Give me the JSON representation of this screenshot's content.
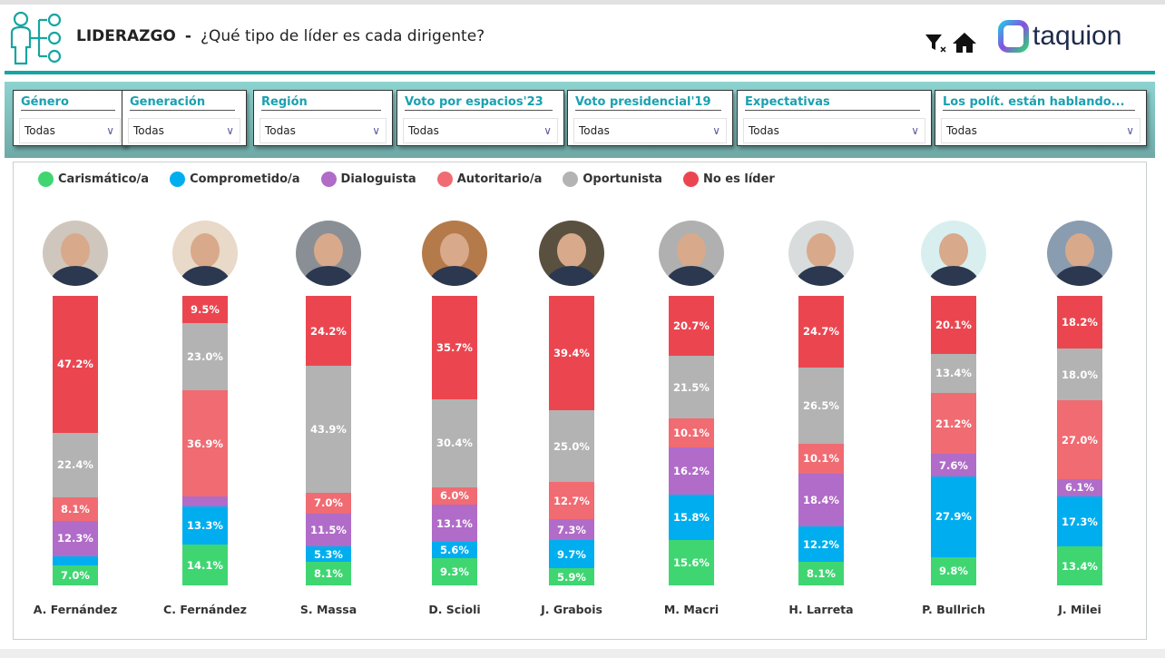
{
  "header": {
    "title": "LIDERAZGO",
    "separator": "-",
    "subtitle": "¿Qué tipo de líder es cada dirigente?",
    "brand": "taquion",
    "icons": [
      "clear-filter-icon",
      "home-icon"
    ]
  },
  "filters": [
    {
      "label": "Género",
      "value": "Todas"
    },
    {
      "label": "Generación",
      "value": "Todas"
    },
    {
      "label": "Región",
      "value": "Todas"
    },
    {
      "label": "Voto por espacios'23",
      "value": "Todas"
    },
    {
      "label": "Voto presidencial'19",
      "value": "Todas"
    },
    {
      "label": "Expectativas",
      "value": "Todas"
    },
    {
      "label": "Los polít. están hablando...",
      "value": "Todas"
    }
  ],
  "chart_data": {
    "type": "bar",
    "stacked": true,
    "ylim": [
      0,
      100
    ],
    "series_names": [
      "Carismático/a",
      "Comprometido/a",
      "Dialoguista",
      "Autoritario/a",
      "Oportunista",
      "No es líder"
    ],
    "colors": [
      "#3fd672",
      "#00aeef",
      "#b06cc8",
      "#f06b72",
      "#b3b3b3",
      "#eb4650"
    ],
    "categories": [
      "A. Fernández",
      "C. Fernández",
      "S. Massa",
      "D. Scioli",
      "J. Grabois",
      "M. Macri",
      "H. Larreta",
      "P. Bullrich",
      "J. Milei"
    ],
    "values": [
      [
        7.0,
        3.0,
        12.3,
        8.1,
        22.4,
        47.2
      ],
      [
        14.1,
        13.3,
        3.2,
        36.9,
        23.0,
        9.5
      ],
      [
        8.1,
        5.3,
        11.5,
        7.0,
        43.9,
        24.2
      ],
      [
        9.3,
        5.6,
        13.1,
        6.0,
        30.4,
        35.7
      ],
      [
        5.9,
        9.7,
        7.3,
        12.7,
        25.0,
        39.4
      ],
      [
        15.6,
        15.8,
        16.2,
        10.1,
        21.5,
        20.7
      ],
      [
        8.1,
        12.2,
        18.4,
        10.1,
        26.5,
        24.7
      ],
      [
        9.8,
        27.9,
        7.6,
        21.2,
        13.4,
        20.1
      ],
      [
        13.4,
        17.3,
        6.1,
        27.0,
        18.0,
        18.2
      ]
    ],
    "label_min": 4.0
  }
}
